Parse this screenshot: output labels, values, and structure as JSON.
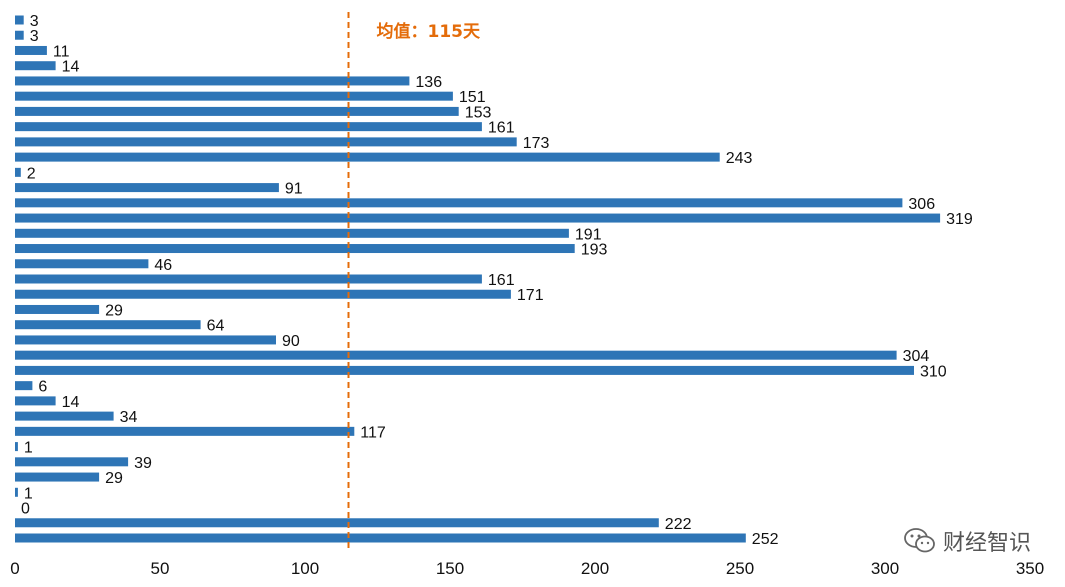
{
  "chart_data": {
    "type": "bar",
    "orientation": "horizontal",
    "values": [
      3,
      3,
      11,
      14,
      136,
      151,
      153,
      161,
      173,
      243,
      2,
      91,
      306,
      319,
      191,
      193,
      46,
      161,
      171,
      29,
      64,
      90,
      304,
      310,
      6,
      14,
      34,
      117,
      1,
      39,
      29,
      1,
      0,
      222,
      252
    ],
    "xlim": [
      0,
      350
    ],
    "xticks": [
      "0",
      "50",
      "100",
      "150",
      "200",
      "250",
      "300",
      "350"
    ],
    "mean_line": {
      "value": 115,
      "label": "均值：115天"
    },
    "bar_color": "#2E75B6",
    "mean_color": "#E46C0A",
    "grid": false
  },
  "watermark": {
    "text": "财经智识",
    "icon": "wechat-icon"
  }
}
